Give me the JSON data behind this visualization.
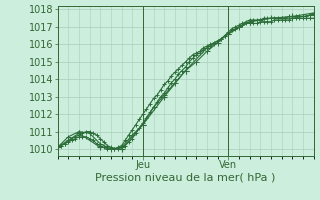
{
  "xlabel": "Pression niveau de la mer( hPa )",
  "bg_color": "#cceedd",
  "plot_bg_color": "#cceedd",
  "grid_color": "#aaccbb",
  "line_color": "#2d6e3a",
  "marker_color": "#2d6e3a",
  "axis_color": "#336633",
  "ylim": [
    1009.6,
    1018.2
  ],
  "xlim": [
    0,
    72
  ],
  "yticks": [
    1010,
    1011,
    1012,
    1013,
    1014,
    1015,
    1016,
    1017,
    1018
  ],
  "xtick_positions": [
    24,
    48
  ],
  "xtick_labels": [
    "Jeu",
    "Ven"
  ],
  "series1_x": [
    0,
    1,
    2,
    3,
    4,
    5,
    6,
    7,
    8,
    9,
    10,
    11,
    12,
    13,
    14,
    15,
    16,
    17,
    18,
    19,
    20,
    21,
    22,
    23,
    24,
    25,
    26,
    27,
    28,
    29,
    30,
    31,
    32,
    33,
    34,
    35,
    36,
    37,
    38,
    39,
    40,
    41,
    42,
    43,
    44,
    45,
    46,
    47,
    48,
    49,
    50,
    51,
    52,
    53,
    54,
    55,
    56,
    57,
    58,
    59,
    60,
    61,
    62,
    63,
    64,
    65,
    66,
    67,
    68,
    69,
    70,
    71,
    72
  ],
  "series1_y": [
    1010.1,
    1010.2,
    1010.3,
    1010.5,
    1010.6,
    1010.7,
    1010.8,
    1010.9,
    1011.0,
    1011.0,
    1010.9,
    1010.8,
    1010.6,
    1010.4,
    1010.2,
    1010.1,
    1010.0,
    1010.0,
    1010.1,
    1010.2,
    1010.4,
    1010.6,
    1010.9,
    1011.2,
    1011.5,
    1011.8,
    1012.1,
    1012.4,
    1012.7,
    1013.0,
    1013.2,
    1013.5,
    1013.8,
    1014.0,
    1014.3,
    1014.5,
    1014.7,
    1015.0,
    1015.2,
    1015.4,
    1015.5,
    1015.7,
    1015.8,
    1015.9,
    1016.0,
    1016.1,
    1016.3,
    1016.5,
    1016.7,
    1016.9,
    1017.0,
    1017.1,
    1017.2,
    1017.3,
    1017.4,
    1017.4,
    1017.4,
    1017.4,
    1017.5,
    1017.5,
    1017.5,
    1017.5,
    1017.5,
    1017.5,
    1017.5,
    1017.6,
    1017.6,
    1017.6,
    1017.6,
    1017.6,
    1017.6,
    1017.7,
    1017.7
  ],
  "series2_x": [
    0,
    1,
    2,
    3,
    4,
    5,
    6,
    7,
    8,
    9,
    10,
    11,
    12,
    13,
    14,
    15,
    16,
    17,
    18,
    19,
    20,
    21,
    22,
    23,
    24,
    25,
    26,
    27,
    28,
    29,
    30,
    31,
    32,
    33,
    34,
    35,
    36,
    37,
    38,
    39,
    40,
    41,
    42,
    43,
    44,
    45,
    46,
    47,
    48,
    49,
    50,
    51,
    52,
    53,
    54,
    55,
    56,
    57,
    58,
    59,
    60,
    61,
    62,
    63,
    64,
    65,
    66,
    67,
    68,
    69,
    70,
    71,
    72
  ],
  "series2_y": [
    1010.1,
    1010.2,
    1010.3,
    1010.4,
    1010.5,
    1010.6,
    1010.7,
    1010.7,
    1010.7,
    1010.6,
    1010.5,
    1010.3,
    1010.2,
    1010.1,
    1010.0,
    1010.0,
    1010.0,
    1010.1,
    1010.2,
    1010.5,
    1010.8,
    1011.1,
    1011.4,
    1011.7,
    1012.0,
    1012.3,
    1012.6,
    1012.9,
    1013.1,
    1013.4,
    1013.7,
    1013.9,
    1014.2,
    1014.4,
    1014.6,
    1014.8,
    1015.0,
    1015.2,
    1015.4,
    1015.5,
    1015.6,
    1015.8,
    1015.9,
    1016.0,
    1016.1,
    1016.2,
    1016.3,
    1016.5,
    1016.6,
    1016.8,
    1016.9,
    1017.0,
    1017.1,
    1017.2,
    1017.2,
    1017.2,
    1017.2,
    1017.3,
    1017.3,
    1017.3,
    1017.3,
    1017.4,
    1017.4,
    1017.4,
    1017.4,
    1017.4,
    1017.5,
    1017.5,
    1017.5,
    1017.5,
    1017.5,
    1017.5,
    1017.5
  ],
  "series3_x": [
    0,
    3,
    6,
    9,
    12,
    15,
    18,
    21,
    24,
    27,
    30,
    33,
    36,
    39,
    42,
    45,
    48,
    51,
    54,
    57,
    60,
    63,
    66,
    69,
    72
  ],
  "series3_y": [
    1010.1,
    1010.7,
    1011.0,
    1010.9,
    1010.3,
    1010.0,
    1010.1,
    1010.8,
    1011.4,
    1012.4,
    1013.1,
    1013.8,
    1014.5,
    1015.0,
    1015.6,
    1016.1,
    1016.6,
    1017.0,
    1017.3,
    1017.4,
    1017.5,
    1017.5,
    1017.5,
    1017.6,
    1017.7
  ],
  "series4_x": [
    0,
    6,
    12,
    18,
    24,
    30,
    36,
    42,
    48,
    54,
    60,
    66,
    72
  ],
  "series4_y": [
    1010.1,
    1010.9,
    1010.1,
    1010.0,
    1011.4,
    1013.0,
    1014.5,
    1015.8,
    1016.6,
    1017.3,
    1017.5,
    1017.6,
    1017.8
  ],
  "vline_positions": [
    24,
    48
  ],
  "xlabel_fontsize": 8,
  "ytick_fontsize": 7,
  "xtick_fontsize": 7
}
